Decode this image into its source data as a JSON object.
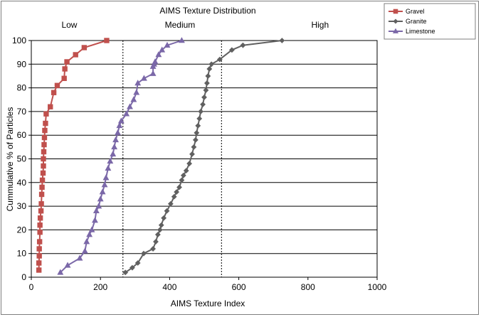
{
  "chart_data": {
    "type": "line",
    "title": "AIMS Texture Distribution",
    "xlabel": "AIMS Texture Index",
    "ylabel": "Cummulative % of Particles",
    "xlim": [
      0,
      1000
    ],
    "ylim": [
      0,
      100
    ],
    "x_ticks": [
      0,
      200,
      400,
      600,
      800,
      1000
    ],
    "y_ticks": [
      0,
      10,
      20,
      30,
      40,
      50,
      60,
      70,
      80,
      90,
      100
    ],
    "grid": "horizontal",
    "legend_position": "top-right",
    "zones": [
      {
        "label": "Low",
        "x": 110
      },
      {
        "label": "Medium",
        "x": 430
      },
      {
        "label": "High",
        "x": 835
      }
    ],
    "boundaries": [
      265,
      550
    ],
    "series": [
      {
        "name": "Gravel",
        "color": "#c0504d",
        "marker": "square",
        "points": [
          [
            22,
            3
          ],
          [
            22,
            6
          ],
          [
            23,
            9
          ],
          [
            23,
            12
          ],
          [
            24,
            15
          ],
          [
            25,
            19
          ],
          [
            25,
            22
          ],
          [
            26,
            25
          ],
          [
            28,
            28
          ],
          [
            29,
            31
          ],
          [
            30,
            35
          ],
          [
            31,
            38
          ],
          [
            32,
            41
          ],
          [
            34,
            44
          ],
          [
            35,
            47
          ],
          [
            35,
            50
          ],
          [
            36,
            53
          ],
          [
            37,
            56
          ],
          [
            38,
            59
          ],
          [
            39,
            62
          ],
          [
            41,
            65
          ],
          [
            43,
            69
          ],
          [
            55,
            72
          ],
          [
            65,
            78
          ],
          [
            75,
            81
          ],
          [
            95,
            84
          ],
          [
            97,
            88
          ],
          [
            103,
            91
          ],
          [
            128,
            94
          ],
          [
            153,
            97
          ],
          [
            218,
            100
          ]
        ]
      },
      {
        "name": "Granite",
        "color": "#606060",
        "marker": "diamond",
        "points": [
          [
            272,
            2
          ],
          [
            292,
            4
          ],
          [
            308,
            6
          ],
          [
            325,
            10
          ],
          [
            352,
            12
          ],
          [
            360,
            15
          ],
          [
            366,
            18
          ],
          [
            372,
            20
          ],
          [
            376,
            22
          ],
          [
            383,
            25
          ],
          [
            392,
            28
          ],
          [
            403,
            31
          ],
          [
            413,
            34
          ],
          [
            420,
            36
          ],
          [
            428,
            38
          ],
          [
            435,
            41
          ],
          [
            440,
            43
          ],
          [
            448,
            45
          ],
          [
            457,
            48
          ],
          [
            465,
            52
          ],
          [
            470,
            55
          ],
          [
            475,
            58
          ],
          [
            478,
            61
          ],
          [
            482,
            64
          ],
          [
            486,
            67
          ],
          [
            490,
            70
          ],
          [
            496,
            73
          ],
          [
            500,
            76
          ],
          [
            505,
            79
          ],
          [
            508,
            82
          ],
          [
            511,
            85
          ],
          [
            515,
            88
          ],
          [
            521,
            90
          ],
          [
            545,
            92
          ],
          [
            580,
            96
          ],
          [
            612,
            98
          ],
          [
            725,
            100
          ]
        ]
      },
      {
        "name": "Limestone",
        "color": "#7b68a8",
        "marker": "triangle",
        "points": [
          [
            84,
            2
          ],
          [
            105,
            5
          ],
          [
            140,
            8
          ],
          [
            155,
            11
          ],
          [
            160,
            15
          ],
          [
            168,
            18
          ],
          [
            175,
            20
          ],
          [
            184,
            24
          ],
          [
            188,
            28
          ],
          [
            195,
            30
          ],
          [
            200,
            33
          ],
          [
            206,
            36
          ],
          [
            212,
            39
          ],
          [
            216,
            42
          ],
          [
            222,
            46
          ],
          [
            228,
            49
          ],
          [
            236,
            52
          ],
          [
            240,
            55
          ],
          [
            244,
            58
          ],
          [
            250,
            61
          ],
          [
            255,
            64
          ],
          [
            260,
            66
          ],
          [
            275,
            69
          ],
          [
            285,
            72
          ],
          [
            296,
            75
          ],
          [
            304,
            78
          ],
          [
            308,
            82
          ],
          [
            326,
            84
          ],
          [
            352,
            86
          ],
          [
            352,
            89
          ],
          [
            355,
            90
          ],
          [
            358,
            91
          ],
          [
            368,
            94
          ],
          [
            378,
            96
          ],
          [
            393,
            98
          ],
          [
            435,
            100
          ]
        ]
      }
    ]
  }
}
